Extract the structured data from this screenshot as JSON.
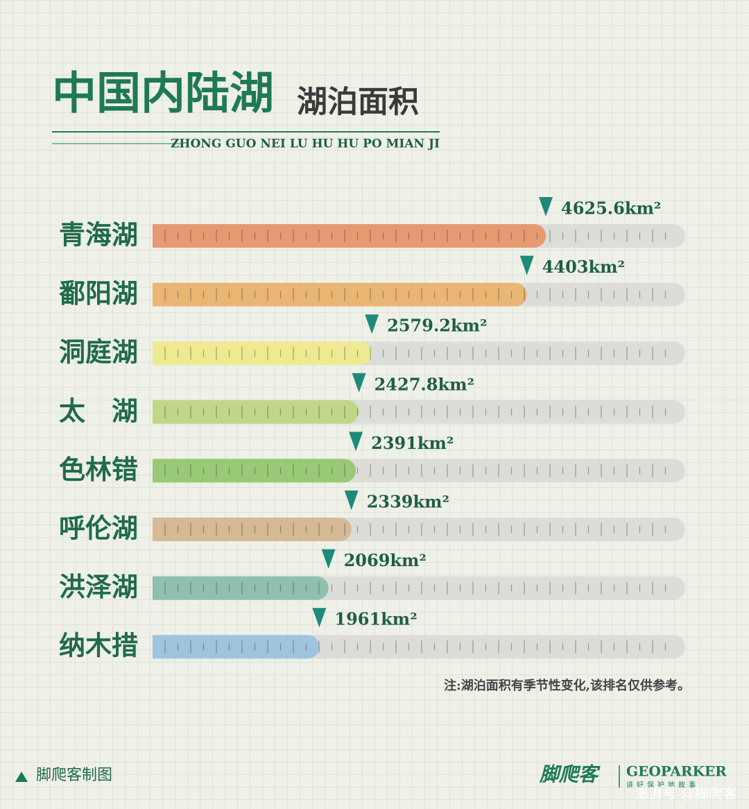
{
  "chart_data": {
    "type": "bar",
    "title": "中国内陆湖",
    "subtitle": "湖泊面积",
    "pinyin": "ZHONG GUO NEI LU HU HU PO MIAN JI",
    "categories": [
      "青海湖",
      "鄱阳湖",
      "洞庭湖",
      "太　湖",
      "色林错",
      "呼伦湖",
      "洪泽湖",
      "纳木措"
    ],
    "values": [
      4625.6,
      4403,
      2579.2,
      2427.8,
      2391,
      2339,
      2069,
      1961
    ],
    "value_labels": [
      "4625.6km²",
      "4403km²",
      "2579.2km²",
      "2427.8km²",
      "2391km²",
      "2339km²",
      "2069km²",
      "1961km²"
    ],
    "colors": [
      "#e59a72",
      "#eab674",
      "#eeea92",
      "#c2d68a",
      "#99c977",
      "#d6b995",
      "#8fbfaf",
      "#9fc4de"
    ],
    "note": "注:湖泊面积有季节性变化,该排名仅供参考。",
    "credit": "脚爬客制图",
    "logo": "脚爬客",
    "logo_en": "GEOPARKER",
    "logo_slogan": "讲好保护地故事",
    "watermark": "澎湃号 @脚爬客"
  }
}
